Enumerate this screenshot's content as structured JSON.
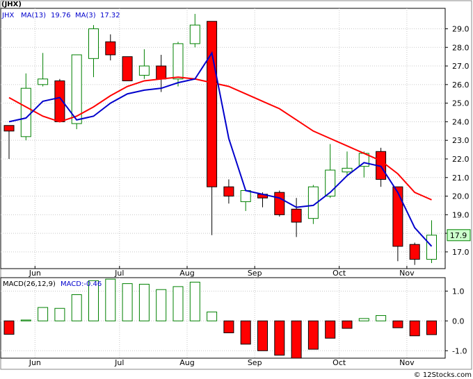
{
  "page": {
    "title": "(JHX)",
    "footer": "© 12Stocks.com"
  },
  "colors": {
    "up_body": "#ffffff",
    "up_outline": "#008000",
    "down_body": "#ff0000",
    "ma_fast": "#0000cc",
    "ma_slow": "#ff0000",
    "last_price_label_bg": "#ccffcc",
    "grid": "#c8c8c8"
  },
  "legend": {
    "symbol": "JHX",
    "ma1_label": "MA(13)",
    "ma1_value": "19.76",
    "ma2_label": "MA(3)",
    "ma2_value": "17.32"
  },
  "macd_legend": {
    "label": "MACD(26,12,9)",
    "value_label": "MACD:-0.46"
  },
  "last_price": "17.9",
  "chart_data": [
    {
      "type": "candlestick",
      "title": "(JHX)",
      "period": "weekly",
      "ylim": [
        16.1,
        30.1
      ],
      "yticks": [
        17.0,
        18.0,
        19.0,
        20.0,
        21.0,
        22.0,
        23.0,
        24.0,
        25.0,
        26.0,
        27.0,
        28.0,
        29.0
      ],
      "xticks": [
        "Jun",
        "Jul",
        "Aug",
        "Sep",
        "Oct",
        "Nov"
      ],
      "xtick_weeks": [
        1,
        6,
        10,
        14,
        19,
        23
      ],
      "candles": [
        {
          "open": 23.8,
          "high": 23.8,
          "low": 22.0,
          "close": 23.5
        },
        {
          "open": 23.2,
          "high": 26.6,
          "low": 23.0,
          "close": 25.8
        },
        {
          "open": 26.0,
          "high": 27.7,
          "low": 25.9,
          "close": 26.3
        },
        {
          "open": 26.2,
          "high": 26.3,
          "low": 24.0,
          "close": 24.0
        },
        {
          "open": 23.9,
          "high": 27.6,
          "low": 23.6,
          "close": 27.6
        },
        {
          "open": 27.4,
          "high": 29.2,
          "low": 26.4,
          "close": 29.0
        },
        {
          "open": 28.3,
          "high": 28.7,
          "low": 27.3,
          "close": 27.6
        },
        {
          "open": 27.5,
          "high": 27.5,
          "low": 26.2,
          "close": 26.2
        },
        {
          "open": 26.5,
          "high": 27.9,
          "low": 26.3,
          "close": 27.0
        },
        {
          "open": 27.0,
          "high": 27.6,
          "low": 25.6,
          "close": 26.3
        },
        {
          "open": 26.3,
          "high": 28.3,
          "low": 25.9,
          "close": 28.2
        },
        {
          "open": 28.2,
          "high": 29.8,
          "low": 28.0,
          "close": 29.2
        },
        {
          "open": 29.4,
          "high": 29.4,
          "low": 17.9,
          "close": 20.5
        },
        {
          "open": 20.5,
          "high": 20.9,
          "low": 19.6,
          "close": 20.0
        },
        {
          "open": 19.7,
          "high": 20.3,
          "low": 19.2,
          "close": 20.3
        },
        {
          "open": 20.1,
          "high": 20.2,
          "low": 19.4,
          "close": 19.9
        },
        {
          "open": 20.2,
          "high": 20.3,
          "low": 18.9,
          "close": 19.0
        },
        {
          "open": 19.3,
          "high": 19.9,
          "low": 17.8,
          "close": 18.6
        },
        {
          "open": 18.8,
          "high": 20.6,
          "low": 18.5,
          "close": 20.5
        },
        {
          "open": 20.0,
          "high": 22.8,
          "low": 19.9,
          "close": 21.4
        },
        {
          "open": 21.3,
          "high": 22.4,
          "low": 21.1,
          "close": 21.5
        },
        {
          "open": 21.6,
          "high": 22.4,
          "low": 21.0,
          "close": 22.3
        },
        {
          "open": 22.4,
          "high": 22.6,
          "low": 20.5,
          "close": 20.9
        },
        {
          "open": 20.5,
          "high": 20.5,
          "low": 16.5,
          "close": 17.3
        },
        {
          "open": 17.4,
          "high": 17.5,
          "low": 16.3,
          "close": 16.6
        },
        {
          "open": 16.6,
          "high": 18.7,
          "low": 16.4,
          "close": 17.9
        }
      ],
      "series": [
        {
          "name": "MA(13)",
          "type": "line",
          "values": [
            25.3,
            24.8,
            24.3,
            24.0,
            24.3,
            24.8,
            25.4,
            25.9,
            26.2,
            26.3,
            26.4,
            26.3,
            26.1,
            25.9,
            25.5,
            25.1,
            24.7,
            24.1,
            23.5,
            23.1,
            22.7,
            22.3,
            21.9,
            21.2,
            20.2,
            19.8
          ]
        },
        {
          "name": "MA(3)",
          "type": "line",
          "values": [
            24.0,
            24.2,
            25.1,
            25.3,
            24.1,
            24.3,
            25.0,
            25.5,
            25.7,
            25.8,
            26.1,
            26.3,
            27.7,
            23.1,
            20.3,
            20.1,
            19.9,
            19.4,
            19.5,
            20.2,
            21.1,
            21.8,
            21.6,
            20.2,
            18.3,
            17.3
          ]
        }
      ]
    },
    {
      "type": "bar",
      "title": "MACD(26,12,9)",
      "ylim": [
        -1.25,
        1.45
      ],
      "yticks": [
        -1.0,
        0.0,
        1.0
      ],
      "ytick_labels": [
        "-1.0",
        "0.0",
        "1.0"
      ],
      "xticks": [
        "Jun",
        "Jul",
        "Aug",
        "Sep",
        "Oct",
        "Nov"
      ],
      "xtick_weeks": [
        1,
        6,
        10,
        14,
        19,
        23
      ],
      "values": [
        -0.45,
        0.03,
        0.45,
        0.42,
        0.88,
        1.35,
        1.4,
        1.25,
        1.23,
        1.05,
        1.15,
        1.3,
        0.3,
        -0.4,
        -0.78,
        -1.0,
        -1.15,
        -1.25,
        -0.95,
        -0.58,
        -0.25,
        0.08,
        0.18,
        -0.23,
        -0.5,
        -0.46
      ]
    }
  ]
}
